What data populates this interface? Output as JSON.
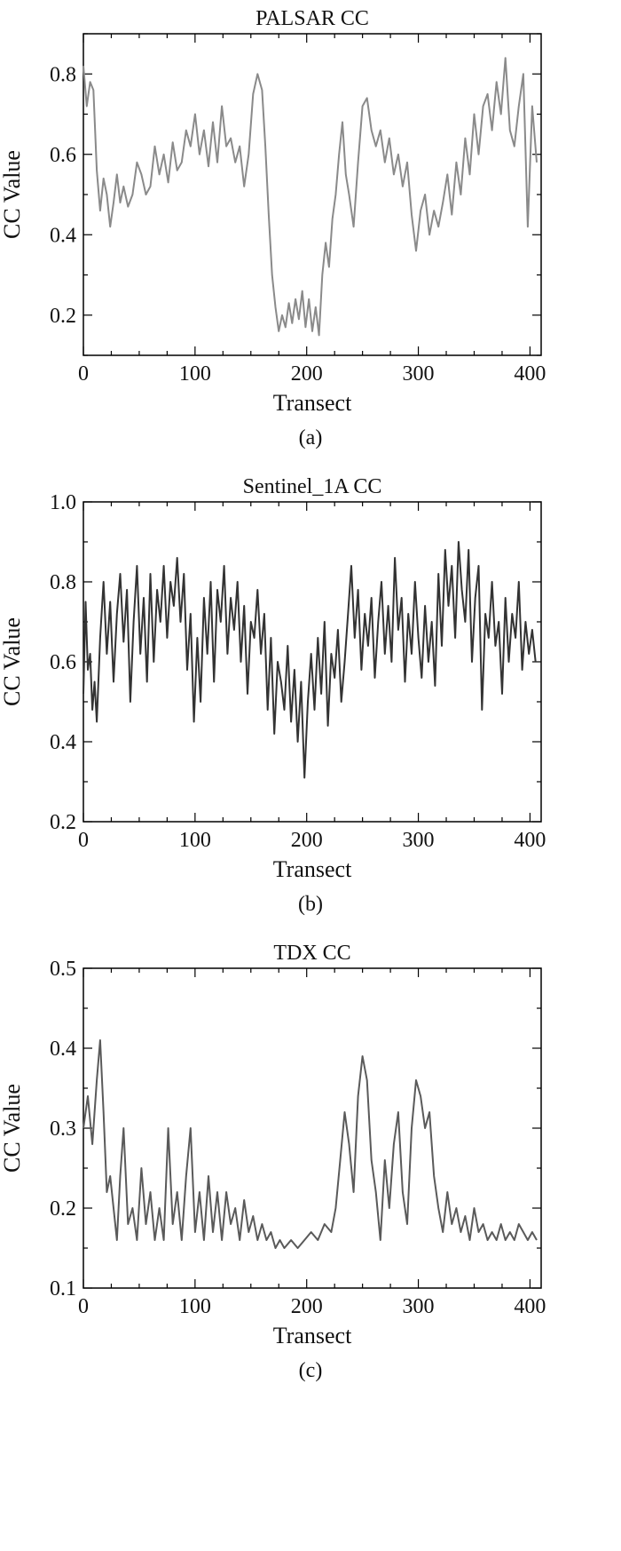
{
  "chart_data": [
    {
      "type": "line",
      "title": "PALSAR CC",
      "xlabel": "Transect",
      "ylabel": "CC Value",
      "caption": "(a)",
      "xlim": [
        0,
        410
      ],
      "ylim": [
        0.1,
        0.9
      ],
      "xticks": [
        0,
        100,
        200,
        300,
        400
      ],
      "yticks": [
        0.2,
        0.4,
        0.6,
        0.8
      ],
      "ytick_labels": [
        "0.2",
        "0.4",
        "0.6",
        "0.8"
      ],
      "line_color": "#8a8a8a",
      "grid": false,
      "series": [
        {
          "x": [
            0,
            3,
            6,
            9,
            12,
            15,
            18,
            21,
            24,
            27,
            30,
            33,
            36,
            40,
            44,
            48,
            52,
            56,
            60,
            64,
            68,
            72,
            76,
            80,
            84,
            88,
            92,
            96,
            100,
            104,
            108,
            112,
            116,
            120,
            124,
            128,
            132,
            136,
            140,
            144,
            148,
            152,
            156,
            160,
            163,
            166,
            169,
            172,
            175,
            178,
            181,
            184,
            187,
            190,
            193,
            196,
            199,
            202,
            205,
            208,
            211,
            214,
            217,
            220,
            223,
            226,
            229,
            232,
            235,
            238,
            242,
            246,
            250,
            254,
            258,
            262,
            266,
            270,
            274,
            278,
            282,
            286,
            290,
            294,
            298,
            302,
            306,
            310,
            314,
            318,
            322,
            326,
            330,
            334,
            338,
            342,
            346,
            350,
            354,
            358,
            362,
            366,
            370,
            374,
            378,
            382,
            386,
            390,
            394,
            398,
            402,
            406
          ],
          "values": [
            0.82,
            0.72,
            0.78,
            0.76,
            0.56,
            0.46,
            0.54,
            0.5,
            0.42,
            0.48,
            0.55,
            0.48,
            0.52,
            0.47,
            0.5,
            0.58,
            0.55,
            0.5,
            0.52,
            0.62,
            0.55,
            0.6,
            0.53,
            0.63,
            0.56,
            0.58,
            0.66,
            0.62,
            0.7,
            0.6,
            0.66,
            0.57,
            0.68,
            0.58,
            0.72,
            0.62,
            0.64,
            0.58,
            0.62,
            0.52,
            0.6,
            0.75,
            0.8,
            0.76,
            0.62,
            0.45,
            0.3,
            0.22,
            0.16,
            0.2,
            0.17,
            0.23,
            0.18,
            0.24,
            0.19,
            0.26,
            0.17,
            0.24,
            0.16,
            0.22,
            0.15,
            0.3,
            0.38,
            0.32,
            0.44,
            0.5,
            0.6,
            0.68,
            0.55,
            0.5,
            0.42,
            0.58,
            0.72,
            0.74,
            0.66,
            0.62,
            0.66,
            0.58,
            0.64,
            0.55,
            0.6,
            0.52,
            0.58,
            0.45,
            0.36,
            0.46,
            0.5,
            0.4,
            0.46,
            0.42,
            0.48,
            0.55,
            0.45,
            0.58,
            0.5,
            0.64,
            0.55,
            0.7,
            0.6,
            0.72,
            0.75,
            0.66,
            0.78,
            0.7,
            0.84,
            0.66,
            0.62,
            0.72,
            0.8,
            0.42,
            0.72,
            0.58
          ]
        }
      ]
    },
    {
      "type": "line",
      "title": "Sentinel_1A CC",
      "xlabel": "Transect",
      "ylabel": "CC Value",
      "caption": "(b)",
      "xlim": [
        0,
        410
      ],
      "ylim": [
        0.2,
        1.0
      ],
      "xticks": [
        0,
        100,
        200,
        300,
        400
      ],
      "yticks": [
        0.2,
        0.4,
        0.6,
        0.8,
        1.0
      ],
      "ytick_labels": [
        "0.2",
        "0.4",
        "0.6",
        "0.8",
        "1.0"
      ],
      "line_color": "#333333",
      "grid": false,
      "series": [
        {
          "x": [
            0,
            2,
            4,
            6,
            8,
            10,
            12,
            15,
            18,
            21,
            24,
            27,
            30,
            33,
            36,
            39,
            42,
            45,
            48,
            51,
            54,
            57,
            60,
            63,
            66,
            69,
            72,
            75,
            78,
            81,
            84,
            87,
            90,
            93,
            96,
            99,
            102,
            105,
            108,
            111,
            114,
            117,
            120,
            123,
            126,
            129,
            132,
            135,
            138,
            141,
            144,
            147,
            150,
            153,
            156,
            159,
            162,
            165,
            168,
            171,
            174,
            177,
            180,
            183,
            186,
            189,
            192,
            195,
            198,
            201,
            204,
            207,
            210,
            213,
            216,
            219,
            222,
            225,
            228,
            231,
            234,
            237,
            240,
            243,
            246,
            249,
            252,
            255,
            258,
            261,
            264,
            267,
            270,
            273,
            276,
            279,
            282,
            285,
            288,
            291,
            294,
            297,
            300,
            303,
            306,
            309,
            312,
            315,
            318,
            321,
            324,
            327,
            330,
            333,
            336,
            339,
            342,
            345,
            348,
            351,
            354,
            357,
            360,
            363,
            366,
            369,
            372,
            375,
            378,
            381,
            384,
            387,
            390,
            393,
            396,
            399,
            402,
            405
          ],
          "values": [
            0.52,
            0.75,
            0.58,
            0.62,
            0.48,
            0.55,
            0.45,
            0.66,
            0.8,
            0.62,
            0.75,
            0.55,
            0.72,
            0.82,
            0.65,
            0.78,
            0.5,
            0.7,
            0.84,
            0.62,
            0.76,
            0.55,
            0.82,
            0.6,
            0.78,
            0.7,
            0.84,
            0.66,
            0.8,
            0.74,
            0.86,
            0.7,
            0.82,
            0.58,
            0.72,
            0.45,
            0.66,
            0.5,
            0.76,
            0.62,
            0.8,
            0.55,
            0.78,
            0.7,
            0.84,
            0.62,
            0.76,
            0.68,
            0.8,
            0.6,
            0.74,
            0.52,
            0.7,
            0.66,
            0.78,
            0.62,
            0.72,
            0.48,
            0.66,
            0.42,
            0.6,
            0.55,
            0.48,
            0.64,
            0.45,
            0.58,
            0.4,
            0.55,
            0.31,
            0.5,
            0.62,
            0.48,
            0.66,
            0.52,
            0.7,
            0.44,
            0.62,
            0.56,
            0.68,
            0.5,
            0.6,
            0.72,
            0.84,
            0.66,
            0.78,
            0.58,
            0.72,
            0.64,
            0.76,
            0.56,
            0.7,
            0.8,
            0.62,
            0.74,
            0.6,
            0.86,
            0.68,
            0.76,
            0.55,
            0.72,
            0.62,
            0.8,
            0.66,
            0.56,
            0.74,
            0.6,
            0.7,
            0.54,
            0.82,
            0.64,
            0.88,
            0.74,
            0.84,
            0.66,
            0.9,
            0.78,
            0.7,
            0.88,
            0.6,
            0.76,
            0.84,
            0.48,
            0.72,
            0.66,
            0.8,
            0.64,
            0.7,
            0.52,
            0.76,
            0.6,
            0.72,
            0.66,
            0.8,
            0.58,
            0.7,
            0.62,
            0.68,
            0.6
          ]
        }
      ]
    },
    {
      "type": "line",
      "title": "TDX CC",
      "xlabel": "Transect",
      "ylabel": "CC Value",
      "caption": "(c)",
      "xlim": [
        0,
        410
      ],
      "ylim": [
        0.1,
        0.5
      ],
      "xticks": [
        0,
        100,
        200,
        300,
        400
      ],
      "yticks": [
        0.1,
        0.2,
        0.3,
        0.4,
        0.5
      ],
      "ytick_labels": [
        "0.1",
        "0.2",
        "0.3",
        "0.4",
        "0.5"
      ],
      "line_color": "#5a5a5a",
      "grid": false,
      "series": [
        {
          "x": [
            0,
            4,
            8,
            12,
            15,
            18,
            21,
            24,
            27,
            30,
            33,
            36,
            40,
            44,
            48,
            52,
            56,
            60,
            64,
            68,
            72,
            76,
            80,
            84,
            88,
            92,
            96,
            100,
            104,
            108,
            112,
            116,
            120,
            124,
            128,
            132,
            136,
            140,
            144,
            148,
            152,
            156,
            160,
            164,
            168,
            172,
            176,
            180,
            186,
            192,
            198,
            204,
            210,
            216,
            222,
            226,
            230,
            234,
            238,
            242,
            246,
            250,
            254,
            258,
            262,
            266,
            270,
            274,
            278,
            282,
            286,
            290,
            294,
            298,
            302,
            306,
            310,
            314,
            318,
            322,
            326,
            330,
            334,
            338,
            342,
            346,
            350,
            354,
            358,
            362,
            366,
            370,
            374,
            378,
            382,
            386,
            390,
            394,
            398,
            402,
            406
          ],
          "values": [
            0.3,
            0.34,
            0.28,
            0.36,
            0.41,
            0.32,
            0.22,
            0.24,
            0.2,
            0.16,
            0.24,
            0.3,
            0.18,
            0.2,
            0.16,
            0.25,
            0.18,
            0.22,
            0.16,
            0.2,
            0.16,
            0.3,
            0.18,
            0.22,
            0.16,
            0.24,
            0.3,
            0.17,
            0.22,
            0.16,
            0.24,
            0.17,
            0.22,
            0.16,
            0.22,
            0.18,
            0.2,
            0.16,
            0.21,
            0.17,
            0.19,
            0.16,
            0.18,
            0.16,
            0.17,
            0.15,
            0.16,
            0.15,
            0.16,
            0.15,
            0.16,
            0.17,
            0.16,
            0.18,
            0.17,
            0.2,
            0.26,
            0.32,
            0.28,
            0.22,
            0.34,
            0.39,
            0.36,
            0.26,
            0.22,
            0.16,
            0.26,
            0.2,
            0.28,
            0.32,
            0.22,
            0.18,
            0.3,
            0.36,
            0.34,
            0.3,
            0.32,
            0.24,
            0.2,
            0.17,
            0.22,
            0.18,
            0.2,
            0.17,
            0.19,
            0.16,
            0.2,
            0.17,
            0.18,
            0.16,
            0.17,
            0.16,
            0.18,
            0.16,
            0.17,
            0.16,
            0.18,
            0.17,
            0.16,
            0.17,
            0.16
          ]
        }
      ]
    }
  ]
}
